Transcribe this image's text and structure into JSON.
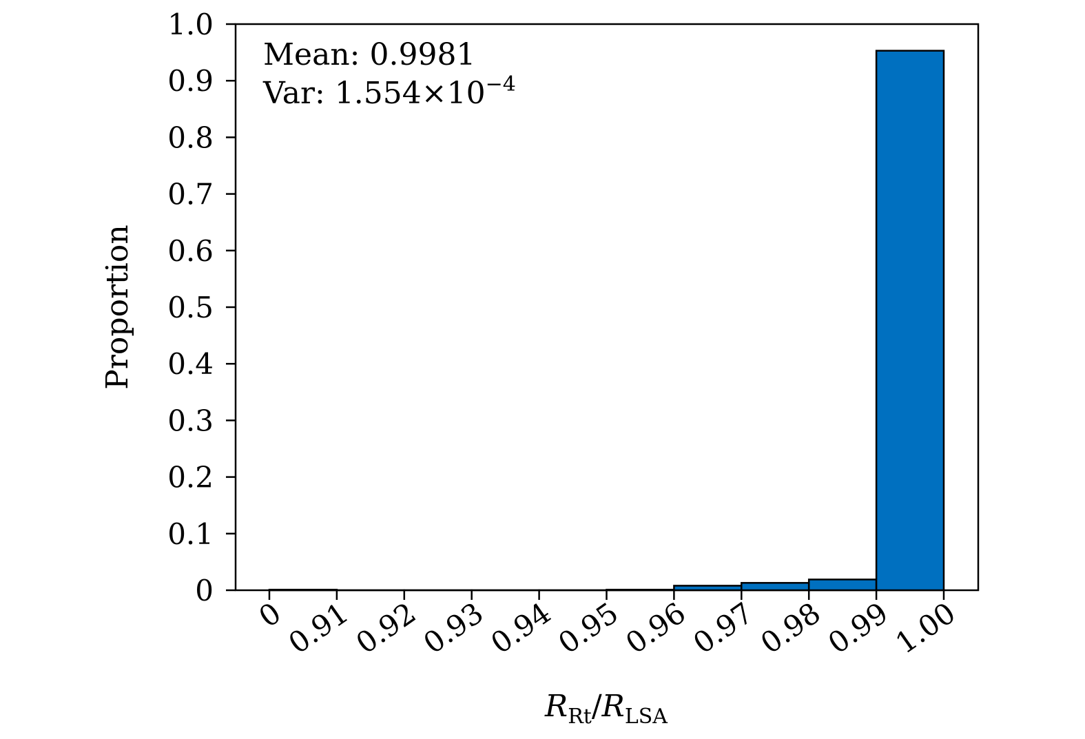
{
  "chart_data": {
    "type": "bar",
    "title": "",
    "xlabel": {
      "base1": "R",
      "sub1": "Rt",
      "sep": "/",
      "base2": "R",
      "sub2": "LSA"
    },
    "ylabel": "Proportion",
    "ylim": [
      0,
      1.0
    ],
    "yticks": [
      "0",
      "0.1",
      "0.2",
      "0.3",
      "0.4",
      "0.5",
      "0.6",
      "0.7",
      "0.8",
      "0.9",
      "1.0"
    ],
    "bin_edges": [
      "0",
      "0.91",
      "0.92",
      "0.93",
      "0.94",
      "0.95",
      "0.96",
      "0.97",
      "0.98",
      "0.99",
      "1.00"
    ],
    "values": [
      0.001,
      0,
      0,
      0,
      0,
      0.001,
      0.008,
      0.013,
      0.019,
      0.953
    ],
    "bar_color": "#0070C0",
    "edge_color": "#000000",
    "grid": false,
    "annotations": {
      "mean": "Mean: 0.9981",
      "var_prefix": "Var: 1.554×10",
      "var_exponent": "−4"
    }
  }
}
